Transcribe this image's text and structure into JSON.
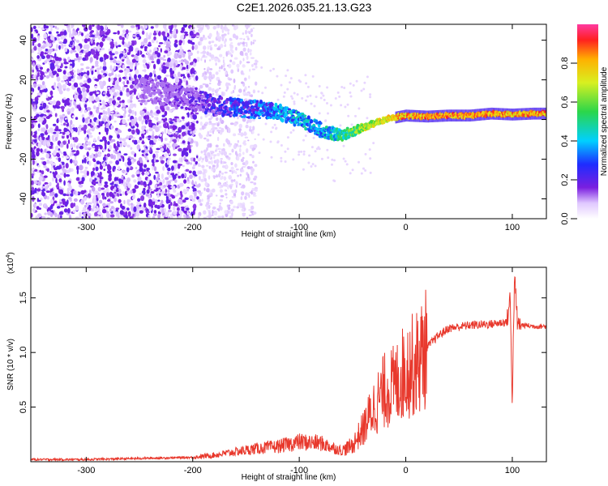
{
  "figure_title": "C2E1.2026.035.21.13.G23",
  "chart_data": [
    {
      "type": "heatmap",
      "title": "C2E1.2026.035.21.13.G23",
      "xlabel": "Height of straight line (km)",
      "ylabel": "Frequency (Hz)",
      "xlim": [
        -352,
        132
      ],
      "ylim": [
        -50,
        48
      ],
      "xticks": [
        -300,
        -200,
        -100,
        0,
        100
      ],
      "yticks": [
        -40,
        -20,
        0,
        20,
        40
      ],
      "colorbar": {
        "label": "Normalized spectral amplitude",
        "range": [
          0.0,
          1.0
        ],
        "ticks": [
          0.0,
          0.2,
          0.4,
          0.6,
          0.8
        ],
        "tick_labels": [
          "0.0",
          "0.2",
          "0.4",
          "0.6",
          "0.8"
        ]
      },
      "signal_track": {
        "x": [
          -240,
          -220,
          -200,
          -180,
          -160,
          -140,
          -120,
          -100,
          -80,
          -60,
          -40,
          -20,
          0,
          20,
          40,
          60,
          80,
          100,
          120,
          132
        ],
        "frequency": [
          15,
          12,
          10,
          7,
          6,
          5,
          4,
          0,
          -5,
          -8,
          -4,
          0,
          2,
          1.5,
          2,
          2,
          3,
          2.5,
          3,
          3
        ],
        "amplitude": [
          0.15,
          0.18,
          0.22,
          0.3,
          0.35,
          0.4,
          0.45,
          0.5,
          0.48,
          0.6,
          0.75,
          0.85,
          0.92,
          0.95,
          0.95,
          0.95,
          0.93,
          0.9,
          0.92,
          0.92
        ]
      },
      "colorbar_ticklabels": [
        "0.0",
        "0.2",
        "0.4",
        "0.6",
        "0.8"
      ]
    },
    {
      "type": "line",
      "xlabel": "Height of straight line (km)",
      "ylabel": "SNR (10 * v/v)",
      "scale_note": "(x10",
      "scale_exp": "4",
      "xlim": [
        -352,
        132
      ],
      "ylim": [
        0,
        1.78
      ],
      "xticks": [
        -300,
        -200,
        -100,
        0,
        100
      ],
      "yticks": [
        0.5,
        1.0,
        1.5
      ],
      "ytick_labels": [
        "0.5",
        "1.0",
        "1.5"
      ],
      "series": [
        {
          "name": "SNR",
          "color": "#e8382c",
          "x": [
            -352,
            -300,
            -250,
            -200,
            -180,
            -160,
            -140,
            -120,
            -100,
            -80,
            -60,
            -50,
            -40,
            -30,
            -20,
            -10,
            0,
            10,
            20,
            30,
            40,
            60,
            80,
            95,
            98,
            100,
            102,
            105,
            110,
            120,
            132
          ],
          "y": [
            0.02,
            0.02,
            0.03,
            0.04,
            0.06,
            0.09,
            0.12,
            0.14,
            0.18,
            0.17,
            0.1,
            0.15,
            0.3,
            0.5,
            0.65,
            0.7,
            0.85,
            0.9,
            1.05,
            1.15,
            1.22,
            1.25,
            1.26,
            1.28,
            1.5,
            0.55,
            1.7,
            1.25,
            1.25,
            1.24,
            1.24
          ]
        }
      ]
    }
  ],
  "colors": {
    "snr_line": "#e8382c",
    "frame": "#000000",
    "scatter_main": "#7a1fe0",
    "scatter_faint": "#c9a6f5"
  }
}
